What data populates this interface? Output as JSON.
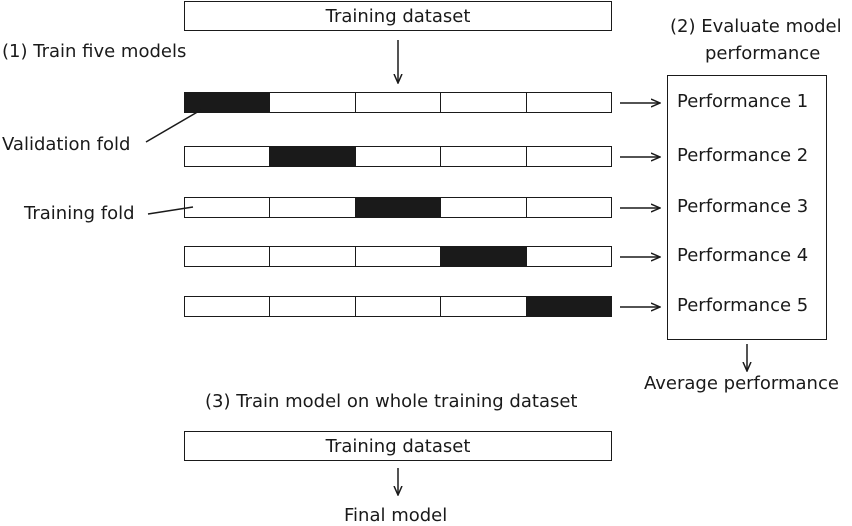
{
  "top_dataset": "Training dataset",
  "step1": "(1) Train five models",
  "step2_line1": "(2) Evaluate model",
  "step2_line2": "performance",
  "validation_fold_label": "Validation fold",
  "training_fold_label": "Training fold",
  "rows": [
    {
      "validation_index": 0,
      "performance": "Performance 1"
    },
    {
      "validation_index": 1,
      "performance": "Performance 2"
    },
    {
      "validation_index": 2,
      "performance": "Performance 3"
    },
    {
      "validation_index": 3,
      "performance": "Performance 4"
    },
    {
      "validation_index": 4,
      "performance": "Performance 5"
    }
  ],
  "average": "Average performance",
  "step3": "(3) Train model on whole training dataset",
  "bottom_dataset": "Training dataset",
  "final_model": "Final model",
  "colors": {
    "validation_fill": "#1a1a1a",
    "stroke": "#1a1a1a"
  }
}
